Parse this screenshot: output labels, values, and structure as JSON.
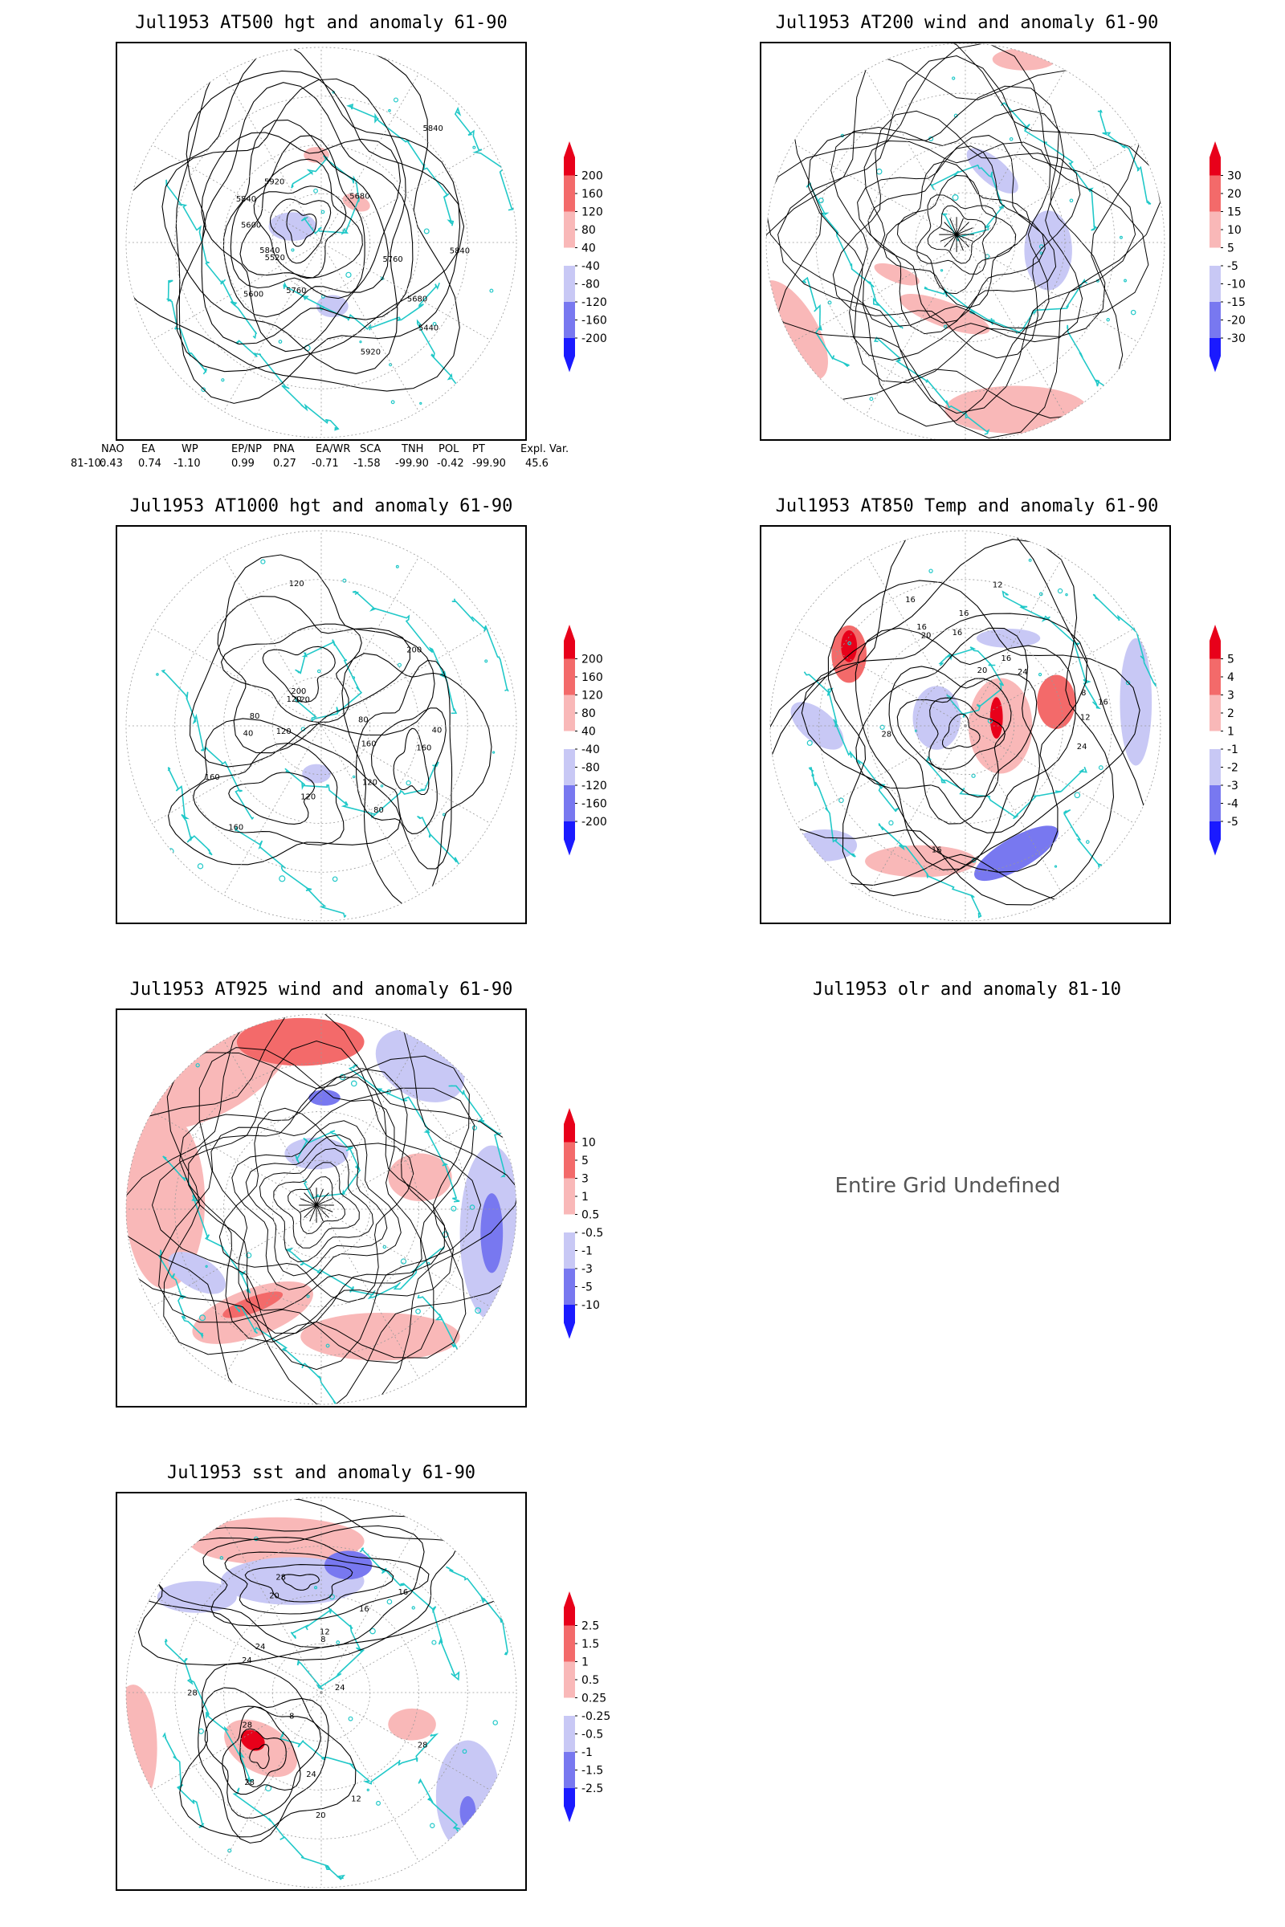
{
  "colors": {
    "coast": "#20c8c8",
    "contour": "#000000",
    "grid": "#999999",
    "pos_dark": "#e8001a",
    "pos_mid": "#f36a6a",
    "pos_light": "#f9b8b8",
    "neg_light": "#c8c8f5",
    "neg_mid": "#7878f0",
    "neg_dark": "#1a1aff"
  },
  "panels": [
    {
      "id": "p500",
      "title": "Jul1953 AT500 hgt and anomaly 61-90",
      "colorbar": [
        "200",
        "160",
        "120",
        "80",
        "40",
        "-40",
        "-80",
        "-120",
        "-160",
        "-200"
      ],
      "contour_labels": [
        "5840",
        "5760",
        "5680",
        "5600",
        "5920",
        "5440",
        "5520",
        "5600",
        "5680",
        "5760",
        "5840",
        "5920",
        "5840",
        "5840"
      ]
    },
    {
      "id": "p200",
      "title": "Jul1953 AT200 wind and anomaly 61-90",
      "colorbar": [
        "30",
        "20",
        "15",
        "10",
        "5",
        "-5",
        "-10",
        "-15",
        "-20",
        "-30"
      ],
      "contour_labels": []
    },
    {
      "id": "p1000",
      "title": "Jul1953 AT1000 hgt and anomaly 61-90",
      "colorbar": [
        "200",
        "160",
        "120",
        "80",
        "40",
        "-40",
        "-80",
        "-120",
        "-160",
        "-200"
      ],
      "contour_labels": [
        "120",
        "160",
        "160",
        "200",
        "120",
        "80",
        "120",
        "40",
        "80",
        "160",
        "200",
        "160",
        "120",
        "80",
        "40",
        "120",
        "120"
      ]
    },
    {
      "id": "p850",
      "title": "Jul1953 AT850 Temp and anomaly 61-90",
      "colorbar": [
        "5",
        "4",
        "3",
        "2",
        "1",
        "-1",
        "-2",
        "-3",
        "-4",
        "-5"
      ],
      "contour_labels": [
        "16",
        "12",
        "16",
        "8",
        "16",
        "20",
        "24",
        "28",
        "16",
        "12",
        "16",
        "20",
        "24",
        "16",
        "16"
      ]
    },
    {
      "id": "p925",
      "title": "Jul1953 AT925 wind and anomaly 61-90",
      "colorbar": [
        "10",
        "5",
        "3",
        "1",
        "0.5",
        "-0.5",
        "-1",
        "-3",
        "-5",
        "-10"
      ],
      "contour_labels": []
    },
    {
      "id": "polr",
      "title": "Jul1953 olr and anomaly 81-10",
      "colorbar": [],
      "contour_labels": []
    },
    {
      "id": "psst",
      "title": "Jul1953 sst and anomaly 61-90",
      "colorbar": [
        "2.5",
        "1.5",
        "1",
        "0.5",
        "0.25",
        "-0.25",
        "-0.5",
        "-1",
        "-1.5",
        "-2.5"
      ],
      "contour_labels": [
        "28",
        "28",
        "24",
        "20",
        "16",
        "12",
        "8",
        "28",
        "24",
        "20",
        "16",
        "12",
        "8",
        "28",
        "24",
        "28",
        "24"
      ]
    }
  ],
  "indices": {
    "headers": [
      "NAO",
      "EA",
      "WP",
      "EP/NP",
      "PNA",
      "EA/WR",
      "SCA",
      "TNH",
      "POL",
      "PT",
      "Expl. Var."
    ],
    "row_label": "81-10:",
    "values": [
      "0.43",
      "0.74",
      "-1.10",
      "0.99",
      "0.27",
      "-0.71",
      "-1.58",
      "-99.90",
      "-0.42",
      "-99.90",
      "45.6"
    ]
  },
  "olr_message": "Entire Grid Undefined"
}
